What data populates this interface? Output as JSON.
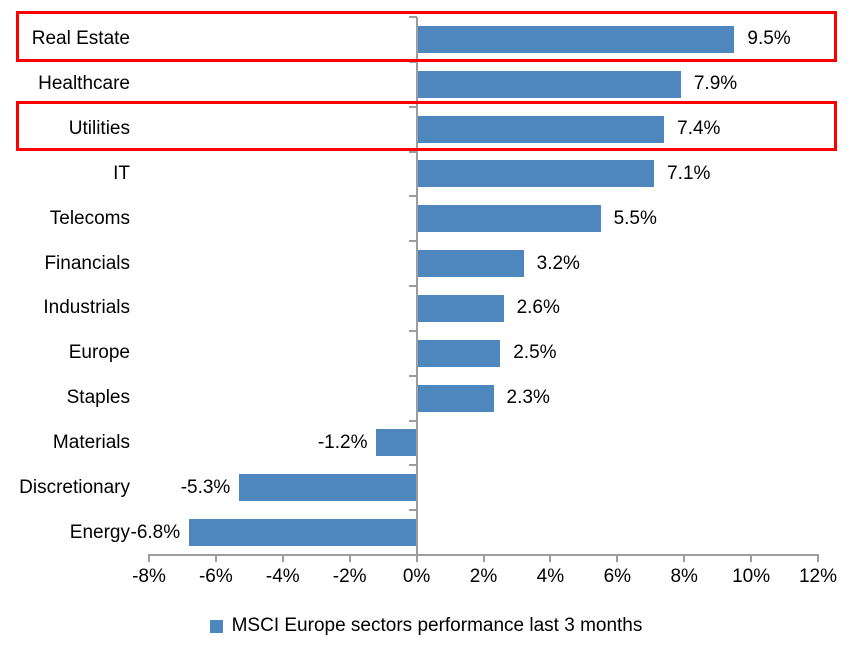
{
  "chart_data": {
    "type": "bar",
    "orientation": "horizontal",
    "title": "",
    "categories": [
      "Real Estate",
      "Healthcare",
      "Utilities",
      "IT",
      "Telecoms",
      "Financials",
      "Industrials",
      "Europe",
      "Staples",
      "Materials",
      "Discretionary",
      "Energy"
    ],
    "values": [
      9.5,
      7.9,
      7.4,
      7.1,
      5.5,
      3.2,
      2.6,
      2.5,
      2.3,
      -1.2,
      -5.3,
      -6.8
    ],
    "value_labels": [
      "9.5%",
      "7.9%",
      "7.4%",
      "7.1%",
      "5.5%",
      "3.2%",
      "2.6%",
      "2.5%",
      "2.3%",
      "-1.2%",
      "-5.3%",
      "-6.8%"
    ],
    "xlim": [
      -8,
      12
    ],
    "x_tick_step": 2,
    "x_tick_labels": [
      "-8%",
      "-6%",
      "-4%",
      "-2%",
      "0%",
      "2%",
      "4%",
      "6%",
      "8%",
      "10%",
      "12%"
    ],
    "grid": false,
    "legend_position": "bottom-center",
    "legend": {
      "marker": "square",
      "label": "MSCI Europe sectors performance last 3 months"
    },
    "colors": {
      "bar": "#4e86be",
      "axis": "#9d9d9d",
      "text": "#000000",
      "highlight": "#ff0000"
    },
    "highlighted_categories": [
      "Real Estate",
      "Utilities"
    ]
  }
}
